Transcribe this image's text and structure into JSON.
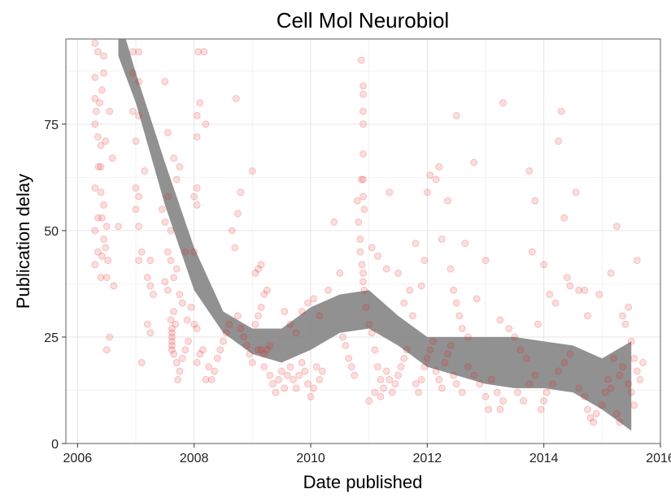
{
  "chart_data": {
    "type": "scatter",
    "title": "Cell Mol Neurobiol",
    "xlabel": "Date published",
    "ylabel": "Publication delay",
    "xlim": [
      2005.8,
      2016
    ],
    "ylim": [
      0,
      95
    ],
    "x_ticks": [
      2006,
      2008,
      2010,
      2012,
      2014,
      2016
    ],
    "x_tick_labels": [
      "2006",
      "2008",
      "2010",
      "2012",
      "2014",
      "2016"
    ],
    "y_ticks": [
      0,
      25,
      50,
      75
    ],
    "y_tick_labels": [
      "0",
      "25",
      "50",
      "75"
    ],
    "grid": true,
    "point_color": "#e31a1c",
    "point_opacity": 0.15,
    "smooth_color": "#888888",
    "points": [
      [
        2006.3,
        94
      ],
      [
        2006.35,
        92
      ],
      [
        2006.45,
        91
      ],
      [
        2006.3,
        86
      ],
      [
        2006.45,
        87
      ],
      [
        2006.3,
        81
      ],
      [
        2006.42,
        83
      ],
      [
        2006.38,
        80
      ],
      [
        2006.32,
        78
      ],
      [
        2006.55,
        78
      ],
      [
        2006.3,
        75
      ],
      [
        2006.35,
        72
      ],
      [
        2006.48,
        71
      ],
      [
        2006.4,
        70
      ],
      [
        2006.6,
        67
      ],
      [
        2006.36,
        65
      ],
      [
        2006.4,
        65
      ],
      [
        2006.3,
        60
      ],
      [
        2006.4,
        59
      ],
      [
        2006.45,
        56
      ],
      [
        2006.35,
        53
      ],
      [
        2006.42,
        53
      ],
      [
        2006.3,
        50
      ],
      [
        2006.5,
        51
      ],
      [
        2006.45,
        48
      ],
      [
        2006.48,
        46
      ],
      [
        2006.35,
        45
      ],
      [
        2006.42,
        44
      ],
      [
        2006.52,
        43
      ],
      [
        2006.3,
        42
      ],
      [
        2006.4,
        39
      ],
      [
        2006.5,
        39
      ],
      [
        2006.62,
        37
      ],
      [
        2006.55,
        25
      ],
      [
        2006.5,
        22
      ],
      [
        2006.7,
        51
      ],
      [
        2006.95,
        92
      ],
      [
        2007.05,
        92
      ],
      [
        2006.95,
        87
      ],
      [
        2007.05,
        85
      ],
      [
        2006.95,
        78
      ],
      [
        2007.05,
        77
      ],
      [
        2007.0,
        71
      ],
      [
        2007.15,
        64
      ],
      [
        2007.0,
        60
      ],
      [
        2007.05,
        58
      ],
      [
        2007.0,
        55
      ],
      [
        2007.05,
        51
      ],
      [
        2007.1,
        45
      ],
      [
        2007.05,
        43
      ],
      [
        2007.25,
        43
      ],
      [
        2007.2,
        39
      ],
      [
        2007.25,
        37
      ],
      [
        2007.3,
        35
      ],
      [
        2007.1,
        19
      ],
      [
        2007.2,
        28
      ],
      [
        2007.25,
        26
      ],
      [
        2007.5,
        85
      ],
      [
        2007.55,
        73
      ],
      [
        2007.65,
        67
      ],
      [
        2007.7,
        62
      ],
      [
        2007.75,
        65
      ],
      [
        2007.55,
        58
      ],
      [
        2007.45,
        55
      ],
      [
        2007.5,
        52
      ],
      [
        2007.6,
        50
      ],
      [
        2007.55,
        45
      ],
      [
        2007.6,
        43
      ],
      [
        2007.7,
        41
      ],
      [
        2007.65,
        39
      ],
      [
        2007.5,
        38
      ],
      [
        2007.55,
        36
      ],
      [
        2007.75,
        35
      ],
      [
        2007.8,
        33
      ],
      [
        2007.65,
        31
      ],
      [
        2007.6,
        29
      ],
      [
        2007.68,
        28
      ],
      [
        2007.62,
        27
      ],
      [
        2007.62,
        26
      ],
      [
        2007.62,
        25
      ],
      [
        2007.62,
        24
      ],
      [
        2007.62,
        23
      ],
      [
        2007.62,
        22
      ],
      [
        2007.65,
        21
      ],
      [
        2007.7,
        19
      ],
      [
        2007.75,
        17
      ],
      [
        2007.72,
        15
      ],
      [
        2007.85,
        22
      ],
      [
        2007.8,
        20
      ],
      [
        2007.9,
        24
      ],
      [
        2007.95,
        32
      ],
      [
        2007.88,
        29
      ],
      [
        2008.0,
        28
      ],
      [
        2008.05,
        27
      ],
      [
        2008.05,
        19
      ],
      [
        2008.1,
        21
      ],
      [
        2008.15,
        22
      ],
      [
        2007.85,
        45
      ],
      [
        2008.0,
        45
      ],
      [
        2008.05,
        56
      ],
      [
        2008.0,
        58
      ],
      [
        2008.05,
        60
      ],
      [
        2008.05,
        72
      ],
      [
        2008.05,
        77
      ],
      [
        2008.1,
        80
      ],
      [
        2008.07,
        92
      ],
      [
        2008.17,
        92
      ],
      [
        2008.2,
        75
      ],
      [
        2008.2,
        15
      ],
      [
        2008.25,
        18
      ],
      [
        2008.3,
        15
      ],
      [
        2008.35,
        17
      ],
      [
        2008.4,
        20
      ],
      [
        2008.45,
        22
      ],
      [
        2008.5,
        24
      ],
      [
        2008.55,
        26
      ],
      [
        2008.6,
        28
      ],
      [
        2008.65,
        50
      ],
      [
        2008.7,
        46
      ],
      [
        2008.75,
        54
      ],
      [
        2008.72,
        81
      ],
      [
        2008.8,
        59
      ],
      [
        2008.75,
        30
      ],
      [
        2008.8,
        27
      ],
      [
        2008.85,
        25
      ],
      [
        2008.9,
        23
      ],
      [
        2008.95,
        21
      ],
      [
        2009.0,
        19
      ],
      [
        2009.05,
        28
      ],
      [
        2009.1,
        30
      ],
      [
        2009.15,
        32
      ],
      [
        2009.05,
        40
      ],
      [
        2009.1,
        41
      ],
      [
        2009.15,
        42
      ],
      [
        2009.2,
        35
      ],
      [
        2009.25,
        36
      ],
      [
        2009.0,
        64
      ],
      [
        2009.1,
        22
      ],
      [
        2009.15,
        22
      ],
      [
        2009.2,
        21
      ],
      [
        2009.25,
        22
      ],
      [
        2009.3,
        23
      ],
      [
        2009.2,
        18
      ],
      [
        2009.3,
        16
      ],
      [
        2009.35,
        14
      ],
      [
        2009.4,
        12
      ],
      [
        2009.45,
        15
      ],
      [
        2009.5,
        17
      ],
      [
        2009.55,
        13
      ],
      [
        2009.6,
        16
      ],
      [
        2009.65,
        18
      ],
      [
        2009.7,
        15
      ],
      [
        2009.75,
        13
      ],
      [
        2009.8,
        16
      ],
      [
        2009.85,
        19
      ],
      [
        2009.9,
        17
      ],
      [
        2009.95,
        14
      ],
      [
        2010.0,
        11
      ],
      [
        2010.05,
        13
      ],
      [
        2010.1,
        18
      ],
      [
        2010.15,
        15
      ],
      [
        2010.2,
        17
      ],
      [
        2009.55,
        31
      ],
      [
        2009.65,
        28
      ],
      [
        2009.75,
        26
      ],
      [
        2009.85,
        31
      ],
      [
        2009.95,
        33
      ],
      [
        2010.05,
        34
      ],
      [
        2010.15,
        30
      ],
      [
        2010.3,
        36
      ],
      [
        2010.4,
        52
      ],
      [
        2010.5,
        40
      ],
      [
        2010.55,
        25
      ],
      [
        2010.6,
        23
      ],
      [
        2010.65,
        20
      ],
      [
        2010.7,
        18
      ],
      [
        2010.75,
        16
      ],
      [
        2010.8,
        57
      ],
      [
        2010.82,
        52
      ],
      [
        2010.85,
        48
      ],
      [
        2010.85,
        45
      ],
      [
        2010.88,
        42
      ],
      [
        2010.9,
        40
      ],
      [
        2010.9,
        38
      ],
      [
        2010.92,
        36
      ],
      [
        2010.87,
        90
      ],
      [
        2010.9,
        84
      ],
      [
        2010.9,
        82
      ],
      [
        2010.9,
        78
      ],
      [
        2010.9,
        75
      ],
      [
        2010.9,
        68
      ],
      [
        2010.9,
        62
      ],
      [
        2010.87,
        62
      ],
      [
        2010.9,
        58
      ],
      [
        2010.92,
        55
      ],
      [
        2010.95,
        32
      ],
      [
        2011.0,
        28
      ],
      [
        2011.05,
        26
      ],
      [
        2011.1,
        22
      ],
      [
        2011.15,
        18
      ],
      [
        2011.2,
        15
      ],
      [
        2011.25,
        13
      ],
      [
        2011.3,
        17
      ],
      [
        2011.35,
        15
      ],
      [
        2011.4,
        12
      ],
      [
        2011.45,
        14
      ],
      [
        2011.5,
        16
      ],
      [
        2011.55,
        18
      ],
      [
        2011.6,
        20
      ],
      [
        2011.65,
        22
      ],
      [
        2011.0,
        10
      ],
      [
        2011.1,
        12
      ],
      [
        2011.2,
        11
      ],
      [
        2011.05,
        46
      ],
      [
        2011.15,
        44
      ],
      [
        2011.3,
        41
      ],
      [
        2011.35,
        59
      ],
      [
        2011.5,
        40
      ],
      [
        2011.6,
        33
      ],
      [
        2011.7,
        36
      ],
      [
        2011.75,
        30
      ],
      [
        2011.8,
        47
      ],
      [
        2011.9,
        37
      ],
      [
        2011.95,
        43
      ],
      [
        2012.0,
        59
      ],
      [
        2012.05,
        63
      ],
      [
        2012.15,
        62
      ],
      [
        2012.2,
        65
      ],
      [
        2012.35,
        57
      ],
      [
        2012.25,
        48
      ],
      [
        2012.4,
        41
      ],
      [
        2012.45,
        36
      ],
      [
        2012.5,
        77
      ],
      [
        2012.65,
        47
      ],
      [
        2012.8,
        66
      ],
      [
        2012.85,
        34
      ],
      [
        2012.5,
        33
      ],
      [
        2012.55,
        30
      ],
      [
        2012.6,
        27
      ],
      [
        2012.7,
        25
      ],
      [
        2011.8,
        14
      ],
      [
        2011.85,
        12
      ],
      [
        2011.9,
        15
      ],
      [
        2011.95,
        18
      ],
      [
        2012.0,
        20
      ],
      [
        2012.05,
        22
      ],
      [
        2012.1,
        24
      ],
      [
        2012.15,
        17
      ],
      [
        2012.2,
        15
      ],
      [
        2012.25,
        13
      ],
      [
        2012.3,
        19
      ],
      [
        2012.35,
        21
      ],
      [
        2012.4,
        23
      ],
      [
        2012.45,
        16
      ],
      [
        2012.5,
        14
      ],
      [
        2012.6,
        12
      ],
      [
        2012.7,
        18
      ],
      [
        2012.8,
        16
      ],
      [
        2012.9,
        14
      ],
      [
        2013.0,
        11
      ],
      [
        2013.05,
        8
      ],
      [
        2013.1,
        15
      ],
      [
        2013.2,
        12
      ],
      [
        2013.25,
        8
      ],
      [
        2013.3,
        10
      ],
      [
        2013.0,
        43
      ],
      [
        2013.3,
        80
      ],
      [
        2013.25,
        29
      ],
      [
        2013.4,
        27
      ],
      [
        2013.5,
        25
      ],
      [
        2013.6,
        22
      ],
      [
        2013.7,
        20
      ],
      [
        2013.75,
        64
      ],
      [
        2013.8,
        45
      ],
      [
        2013.85,
        57
      ],
      [
        2013.9,
        28
      ],
      [
        2014.0,
        42
      ],
      [
        2014.1,
        35
      ],
      [
        2014.2,
        33
      ],
      [
        2014.25,
        71
      ],
      [
        2014.3,
        78
      ],
      [
        2014.35,
        53
      ],
      [
        2014.4,
        39
      ],
      [
        2014.45,
        37
      ],
      [
        2013.55,
        12
      ],
      [
        2013.65,
        10
      ],
      [
        2013.75,
        14
      ],
      [
        2013.85,
        16
      ],
      [
        2013.95,
        8
      ],
      [
        2014.0,
        10
      ],
      [
        2014.05,
        12
      ],
      [
        2014.15,
        14
      ],
      [
        2014.25,
        17
      ],
      [
        2014.35,
        19
      ],
      [
        2014.45,
        21
      ],
      [
        2014.55,
        59
      ],
      [
        2014.6,
        36
      ],
      [
        2014.7,
        36
      ],
      [
        2014.75,
        30
      ],
      [
        2014.6,
        13
      ],
      [
        2014.7,
        11
      ],
      [
        2014.75,
        8
      ],
      [
        2014.8,
        6
      ],
      [
        2014.85,
        5
      ],
      [
        2014.9,
        7
      ],
      [
        2014.95,
        35
      ],
      [
        2015.0,
        9
      ],
      [
        2015.05,
        12
      ],
      [
        2015.15,
        40
      ],
      [
        2015.2,
        20
      ],
      [
        2015.25,
        7
      ],
      [
        2015.3,
        5
      ],
      [
        2015.35,
        30
      ],
      [
        2015.4,
        28
      ],
      [
        2015.45,
        32
      ],
      [
        2015.5,
        24
      ],
      [
        2015.55,
        20
      ],
      [
        2015.6,
        43
      ],
      [
        2015.25,
        51
      ],
      [
        2015.1,
        15
      ],
      [
        2015.15,
        13
      ],
      [
        2015.3,
        16
      ],
      [
        2015.35,
        18
      ],
      [
        2015.45,
        14
      ],
      [
        2015.5,
        12
      ],
      [
        2015.55,
        9
      ],
      [
        2015.6,
        17
      ],
      [
        2015.65,
        15
      ],
      [
        2015.7,
        19
      ]
    ],
    "smooth_band": {
      "x": [
        2006.7,
        2007.0,
        2007.5,
        2008.0,
        2008.5,
        2009.0,
        2009.5,
        2010.0,
        2010.5,
        2011.0,
        2011.5,
        2012.0,
        2012.5,
        2013.0,
        2013.5,
        2014.0,
        2014.5,
        2015.0,
        2015.5
      ],
      "lower": [
        91,
        80,
        56,
        36,
        26,
        21,
        19,
        22,
        26,
        27,
        23,
        18,
        16,
        14,
        13,
        13,
        12,
        8,
        3
      ],
      "upper": [
        101,
        87,
        66,
        46,
        31,
        27,
        27,
        32,
        35,
        36,
        30,
        25,
        25,
        25,
        25,
        24,
        23,
        20,
        24
      ]
    }
  }
}
